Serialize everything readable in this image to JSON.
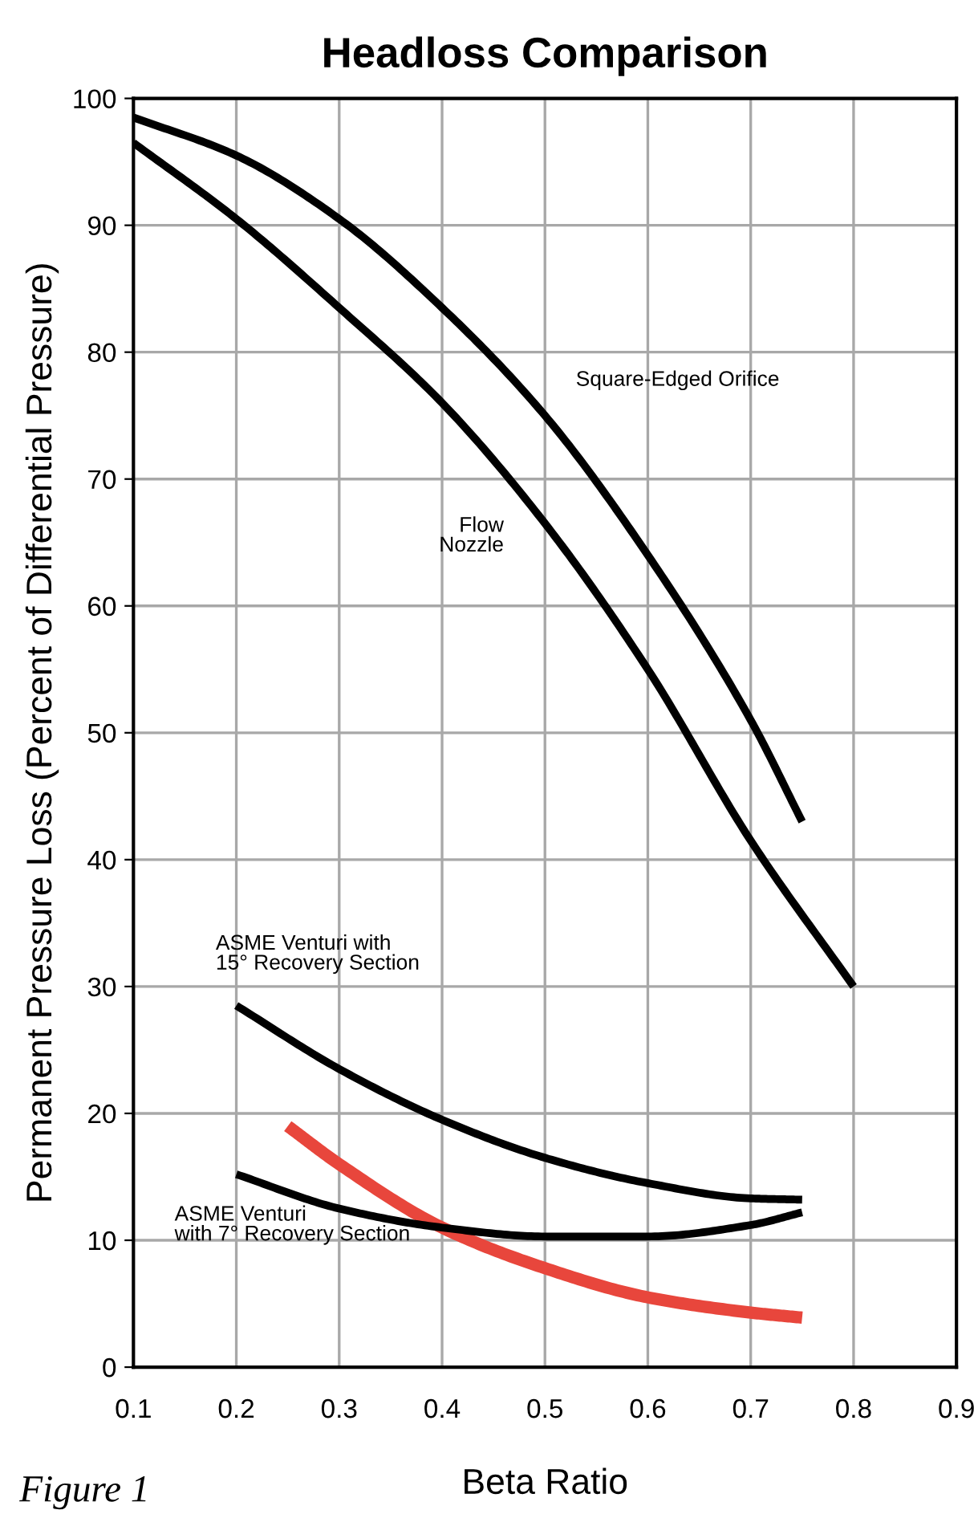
{
  "chart_data": {
    "type": "line",
    "title": "Headloss Comparison",
    "xlabel": "Beta Ratio",
    "ylabel": "Permanent Pressure Loss (Percent of Differential Pressure)",
    "xlim": [
      0.1,
      0.9
    ],
    "xticks": [
      0.1,
      0.2,
      0.3,
      0.4,
      0.5,
      0.6,
      0.7,
      0.8,
      0.9
    ],
    "ylim": [
      0,
      100
    ],
    "yticks": [
      0,
      10,
      20,
      30,
      40,
      50,
      60,
      70,
      80,
      90,
      100
    ],
    "grid": true,
    "legend": false,
    "marker": "none",
    "line_style": "solid",
    "series": [
      {
        "name": "Square-Edged Orifice",
        "color": "#000000",
        "x": [
          0.1,
          0.2,
          0.3,
          0.4,
          0.5,
          0.6,
          0.7,
          0.75
        ],
        "values": [
          98.5,
          95.5,
          90.5,
          83.5,
          75,
          64,
          51,
          43
        ]
      },
      {
        "name": "Flow\nNozzle",
        "color": "#000000",
        "x": [
          0.1,
          0.2,
          0.3,
          0.4,
          0.5,
          0.6,
          0.7,
          0.8
        ],
        "values": [
          96.5,
          90.5,
          83.5,
          76,
          66.5,
          55,
          41.5,
          30
        ]
      },
      {
        "name": "ASME Venturi with\n15° Recovery Section",
        "color": "#000000",
        "x": [
          0.2,
          0.3,
          0.4,
          0.5,
          0.6,
          0.7,
          0.75
        ],
        "values": [
          28.5,
          23.5,
          19.5,
          16.5,
          14.5,
          13.3,
          13.2
        ]
      },
      {
        "name": "ASME Venturi\nwith 7° Recovery Section",
        "color": "#000000",
        "x": [
          0.2,
          0.3,
          0.4,
          0.5,
          0.6,
          0.7,
          0.75
        ],
        "values": [
          15.2,
          12.5,
          11,
          10.3,
          10.3,
          11.2,
          12.2
        ]
      },
      {
        "color": "#e8463c",
        "x": [
          0.25,
          0.3,
          0.4,
          0.5,
          0.6,
          0.7,
          0.75
        ],
        "values": [
          19,
          16,
          11,
          7.8,
          5.5,
          4.3,
          3.9
        ]
      }
    ],
    "annotations": [
      "Figure 1"
    ]
  }
}
